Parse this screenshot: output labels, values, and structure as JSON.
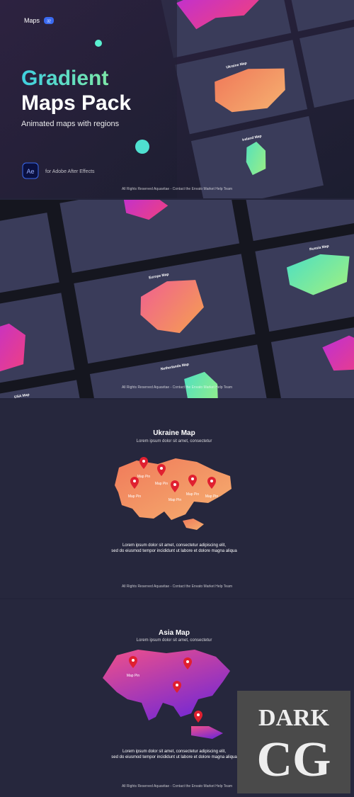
{
  "hero": {
    "badge_label": "Maps",
    "badge_count": "32",
    "title_line1": "Gradient",
    "title_line2": "Maps Pack",
    "subtitle": "Animated maps with regions",
    "app_icon": "Ae",
    "app_note": "for Adobe After Effects",
    "slides": [
      "Ukraine Map",
      "Ireland Map"
    ],
    "footer": "All Rights Reserved Aquavitae - Contact the Envato Market Help Team"
  },
  "collage": {
    "slides": [
      "Europe Map",
      "Russia Map",
      "Netherlands Map",
      "USA Map"
    ],
    "footer": "All Rights Reserved Aquavitae - Contact the Envato Market Help Team"
  },
  "ukraine": {
    "title": "Ukraine Map",
    "subtitle": "Lorem ipsum dolor sit amet, consectetur",
    "pins": [
      "Map Pin",
      "Map Pin",
      "Map Pin",
      "Map Pin",
      "Map Pin",
      "Map Pin"
    ],
    "description": [
      "Lorem ipsum dolor sit amet, consectetur adipiscing elit,",
      "sed do eiusmod tempor incididunt ut labore et dolore magna aliqua"
    ],
    "footer": "All Rights Reserved Aquavitae - Contact the Envato Market Help Team"
  },
  "asia": {
    "title": "Asia Map",
    "subtitle": "Lorem ipsum dolor sit amet, consectetur",
    "pins": [
      "Map Pin"
    ],
    "description": [
      "Lorem ipsum dolor sit amet, consectetur adipiscing elit,",
      "sed do eiusmod tempor incididunt ut labore et dolore magna aliqua"
    ],
    "footer": "All Rights Reserved Aquavitae - Contact the Envato Market Help Team"
  },
  "watermark": {
    "line1": "DARK",
    "line2": "CG"
  }
}
